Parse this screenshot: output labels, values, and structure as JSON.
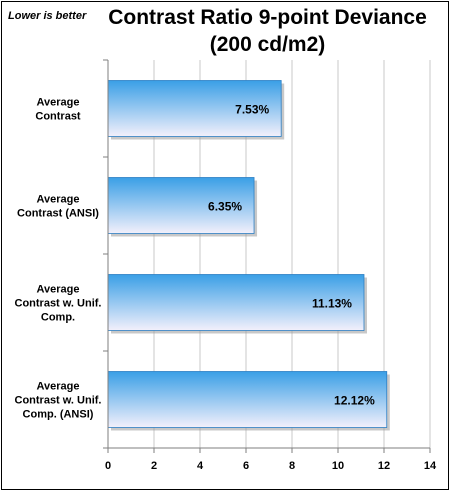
{
  "note": "Lower is better",
  "chart_data": {
    "type": "bar",
    "orientation": "horizontal",
    "title_lines": [
      "Contrast Ratio 9-point Deviance",
      "(200 cd/m2)"
    ],
    "categories": [
      [
        "Average",
        "Contrast"
      ],
      [
        "Average",
        "Contrast (ANSI)"
      ],
      [
        "Average",
        "Contrast w. Unif.",
        "Comp."
      ],
      [
        "Average",
        "Contrast w. Unif.",
        "Comp. (ANSI)"
      ]
    ],
    "values": [
      7.53,
      6.35,
      11.13,
      12.12
    ],
    "value_labels": [
      "7.53%",
      "6.35%",
      "11.13%",
      "12.12%"
    ],
    "xlim": [
      0,
      14
    ],
    "xticks": [
      "0",
      "2",
      "4",
      "6",
      "8",
      "10",
      "12",
      "14"
    ],
    "grid": true,
    "colors": {
      "bar_top": "#3a9fe6",
      "bar_bottom": "#f3f0fb",
      "grid": "#c8c8c8",
      "axis": "#7f7f7f"
    }
  }
}
